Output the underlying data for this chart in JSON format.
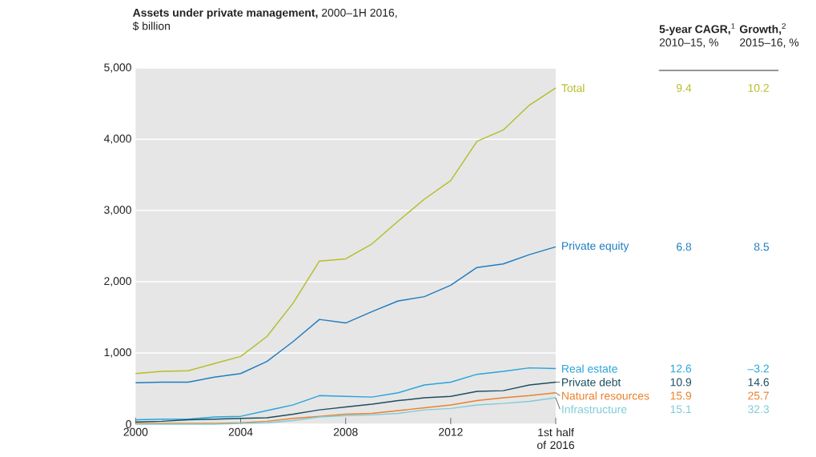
{
  "chart_data": {
    "type": "line",
    "title": "**Assets under private management,** 2000–1H 2016, $ billion",
    "x": [
      2000,
      2001,
      2002,
      2003,
      2004,
      2005,
      2006,
      2007,
      2008,
      2009,
      2010,
      2011,
      2012,
      2013,
      2014,
      2015,
      2016
    ],
    "series": [
      {
        "name": "Total",
        "color": "#b5bd2a",
        "values": [
          710,
          740,
          750,
          850,
          950,
          1230,
          1700,
          2290,
          2320,
          2530,
          2850,
          3160,
          3420,
          3970,
          4130,
          4480,
          4720
        ]
      },
      {
        "name": "Private equity",
        "color": "#1f7dc1",
        "values": [
          580,
          590,
          590,
          660,
          710,
          880,
          1160,
          1470,
          1420,
          1580,
          1730,
          1790,
          1950,
          2200,
          2250,
          2380,
          2490
        ]
      },
      {
        "name": "Real estate",
        "color": "#27a4dc",
        "values": [
          60,
          70,
          70,
          100,
          110,
          190,
          270,
          400,
          390,
          380,
          440,
          550,
          590,
          700,
          740,
          790,
          780
        ]
      },
      {
        "name": "Private debt",
        "color": "#1d4e5f",
        "values": [
          30,
          40,
          60,
          70,
          80,
          90,
          140,
          200,
          240,
          280,
          330,
          370,
          390,
          460,
          470,
          550,
          590
        ]
      },
      {
        "name": "Natural resources",
        "color": "#e9822d",
        "values": [
          10,
          10,
          10,
          10,
          20,
          40,
          80,
          110,
          140,
          150,
          190,
          230,
          270,
          330,
          370,
          400,
          440
        ]
      },
      {
        "name": "Infrastructure",
        "color": "#7fcbd8",
        "values": [
          0,
          0,
          0,
          0,
          10,
          20,
          50,
          100,
          120,
          130,
          150,
          200,
          220,
          270,
          290,
          320,
          370
        ]
      }
    ],
    "annotations": [
      "**5-year CAGR,**$^{1}$ 2010–15, %",
      "**Growth,**$^{2}$ 2015–16, %",
      "9.4",
      "10.2",
      "6.8",
      "8.5",
      "12.6",
      "–3.2",
      "10.9",
      "14.6",
      "15.9",
      "25.7",
      "15.1",
      "32.3"
    ],
    "xlim": [
      2000,
      2016
    ],
    "xticks": [
      2000,
      2004,
      2008,
      2012,
      {
        "value": 2016,
        "label": "1st half of 2016"
      }
    ],
    "ylim": [
      0,
      5000
    ],
    "yticks": [
      {
        "value": 0,
        "label": "0"
      },
      {
        "value": 1000,
        "label": "1,000"
      },
      {
        "value": 2000,
        "label": "2,000"
      },
      {
        "value": 3000,
        "label": "3,000"
      },
      {
        "value": 4000,
        "label": "4,000"
      },
      {
        "value": 5000,
        "label": "5,000"
      }
    ],
    "grid": "y",
    "marker": "none",
    "line_style": "solid"
  }
}
